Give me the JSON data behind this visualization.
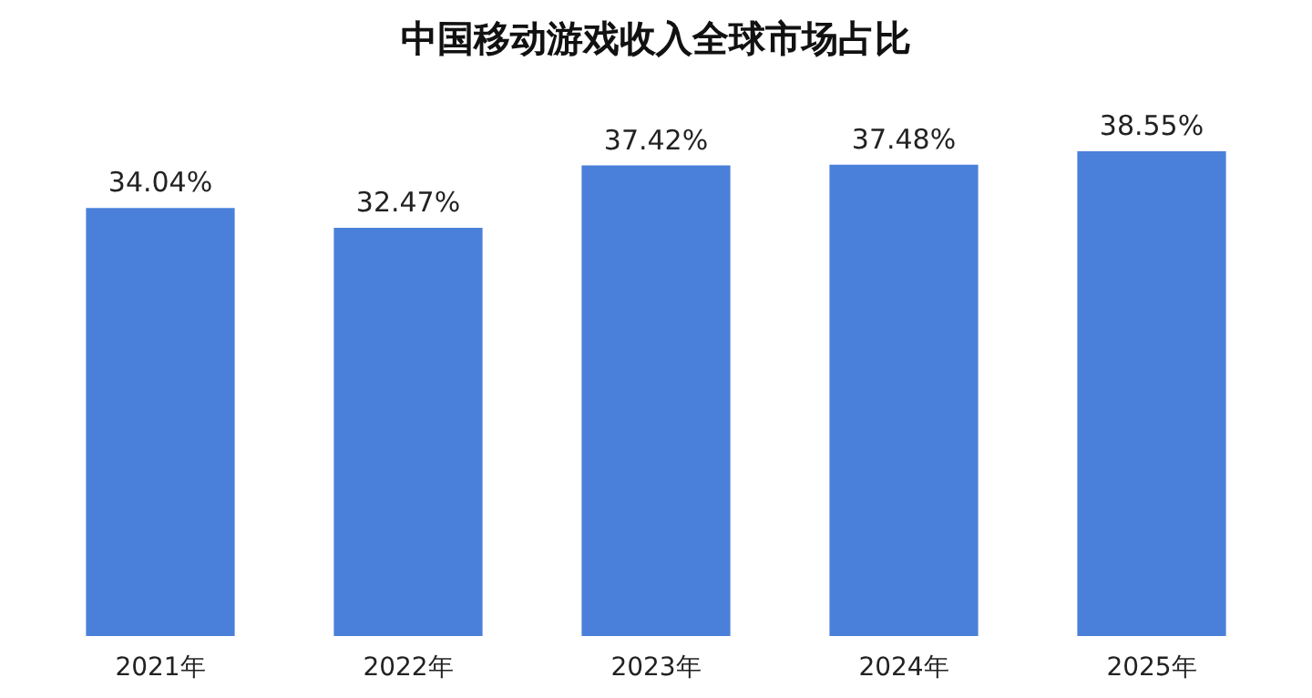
{
  "chart_data": {
    "type": "bar",
    "title": "中国移动游戏收入全球市场占比",
    "categories": [
      "2021年",
      "2022年",
      "2023年",
      "2024年",
      "2025年"
    ],
    "values": [
      34.04,
      32.47,
      37.42,
      37.48,
      38.55
    ],
    "value_labels": [
      "34.04%",
      "32.47%",
      "37.42%",
      "37.48%",
      "38.55%"
    ],
    "color": "#4a80da"
  }
}
